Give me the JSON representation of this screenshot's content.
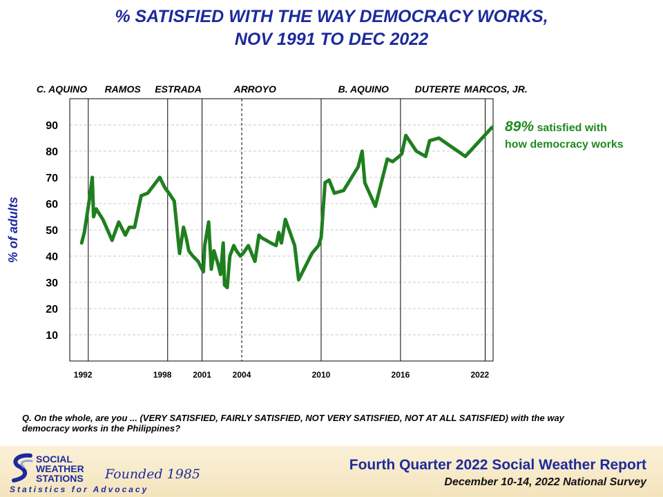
{
  "chart_data": {
    "type": "line",
    "title_line1": "% SATISFIED WITH THE WAY DEMOCRACY WORKS,",
    "title_line2": "NOV 1991 TO DEC 2022",
    "ylabel": "% of adults",
    "ylim": [
      0,
      100
    ],
    "yticks": [
      10,
      20,
      30,
      40,
      50,
      60,
      70,
      80,
      90
    ],
    "xlim": [
      1991.0,
      2023.0
    ],
    "xticks": [
      {
        "x": 1992.0,
        "label": "1992"
      },
      {
        "x": 1998.0,
        "label": "1998"
      },
      {
        "x": 2001.0,
        "label": "2001"
      },
      {
        "x": 2004.0,
        "label": "2004"
      },
      {
        "x": 2010.0,
        "label": "2010"
      },
      {
        "x": 2016.0,
        "label": "2016"
      },
      {
        "x": 2022.0,
        "label": "2022"
      }
    ],
    "administrations": [
      {
        "label": "C. AQUINO",
        "x": 1990.4
      },
      {
        "label": "RAMOS",
        "x": 1995.0
      },
      {
        "label": "ESTRADA",
        "x": 1999.2
      },
      {
        "label": "ARROYO",
        "x": 2005.0
      },
      {
        "label": "B. AQUINO",
        "x": 2013.2
      },
      {
        "label": "DUTERTE",
        "x": 2018.8
      },
      {
        "label": "MARCOS, JR.",
        "x": 2023.2
      }
    ],
    "dividers": [
      {
        "x": 1992.4,
        "style": "solid"
      },
      {
        "x": 1998.4,
        "style": "solid"
      },
      {
        "x": 2001.0,
        "style": "solid"
      },
      {
        "x": 2004.0,
        "style": "dashed"
      },
      {
        "x": 2010.0,
        "style": "solid"
      },
      {
        "x": 2016.0,
        "style": "solid"
      },
      {
        "x": 2022.4,
        "style": "solid"
      }
    ],
    "series": [
      {
        "x": [
          1991.9,
          1992.1,
          1992.5,
          1992.7,
          1992.8,
          1993.0,
          1993.5,
          1994.2,
          1994.7,
          1995.2,
          1995.5,
          1995.9,
          1996.4,
          1996.9,
          1997.8,
          1998.2,
          1998.5,
          1998.9,
          1999.3,
          1999.6,
          1999.8,
          2000.0,
          2000.3,
          2000.7,
          2001.1,
          2001.2,
          2001.5,
          2001.7,
          2001.9,
          2002.2,
          2002.4,
          2002.6,
          2002.7,
          2002.9,
          2003.1,
          2003.4,
          2003.6,
          2003.9,
          2004.1,
          2004.5,
          2005.0,
          2005.3,
          2005.5,
          2006.2,
          2006.6,
          2006.8,
          2007.0,
          2007.3,
          2008.0,
          2008.3,
          2008.8,
          2009.3,
          2009.8,
          2010.0,
          2010.3,
          2010.6,
          2011.0,
          2011.7,
          2012.8,
          2013.1,
          2013.3,
          2014.1,
          2015.0,
          2015.4,
          2015.9,
          2016.1,
          2016.4,
          2017.2,
          2017.9,
          2018.2,
          2018.9,
          2020.9,
          2022.9
        ],
        "values": [
          45,
          49,
          62,
          70,
          55,
          58,
          54,
          46,
          53,
          48,
          51,
          51,
          63,
          64,
          70,
          66,
          64,
          61,
          41,
          51,
          47,
          42,
          40,
          38,
          34,
          44,
          53,
          35,
          42,
          37,
          33,
          45,
          29,
          28,
          40,
          44,
          42,
          40,
          41,
          44,
          38,
          48,
          47,
          45,
          44,
          49,
          45,
          54,
          44,
          31,
          36,
          41,
          44,
          47,
          68,
          69,
          64,
          65,
          74,
          80,
          68,
          59,
          77,
          76,
          78,
          79,
          86,
          80,
          78,
          84,
          85,
          78,
          89
        ]
      }
    ],
    "annotation_value": "89%",
    "annotation_text_1": "satisfied with",
    "annotation_text_2": "how democracy works",
    "line_color": "#1f7f1f",
    "title_color": "#1d2a9c",
    "grid": true
  },
  "question": "Q. On the whole, are you ... (VERY SATISFIED, FAIRLY SATISFIED, NOT VERY SATISFIED, NOT AT ALL SATISFIED) with the way democracy  works in the Philippines?",
  "footer": {
    "logo_line1": "SOCIAL",
    "logo_line2": "WEATHER",
    "logo_line3": "STATIONS",
    "logo_founded": "Founded 1985",
    "logo_tagline": "Statistics for Advocacy",
    "report_title": "Fourth Quarter 2022 Social Weather Report",
    "report_subtitle": "December 10-14, 2022 National Survey"
  }
}
